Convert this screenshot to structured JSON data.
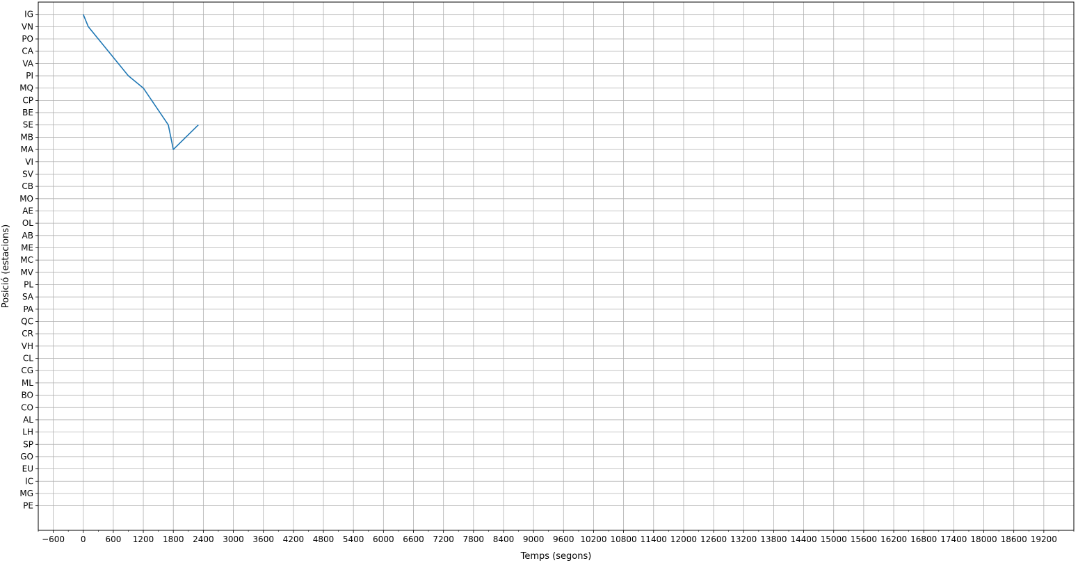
{
  "chart_data": {
    "type": "line",
    "title": "",
    "xlabel": "Temps (segons)",
    "ylabel": "Posició (estacions)",
    "xlim": [
      -900,
      19800
    ],
    "ylim": [
      -2,
      41
    ],
    "grid": true,
    "legend": "none",
    "x_major_ticks": [
      -600,
      0,
      600,
      1200,
      1800,
      2400,
      3000,
      3600,
      4200,
      4800,
      5400,
      6000,
      6600,
      7200,
      7800,
      8400,
      9000,
      9600,
      10200,
      10800,
      11400,
      12000,
      12600,
      13200,
      13800,
      14400,
      15000,
      15600,
      16200,
      16800,
      17400,
      18000,
      18600,
      19200
    ],
    "y_stations": [
      "PE",
      "MG",
      "IC",
      "EU",
      "GO",
      "SP",
      "LH",
      "AL",
      "CO",
      "BO",
      "ML",
      "CG",
      "CL",
      "VH",
      "CR",
      "QC",
      "PA",
      "SA",
      "PL",
      "MV",
      "MC",
      "ME",
      "AB",
      "OL",
      "AE",
      "MO",
      "CB",
      "SV",
      "VI",
      "MA",
      "MB",
      "SE",
      "BE",
      "CP",
      "MQ",
      "PI",
      "VA",
      "CA",
      "PO",
      "VN",
      "IG"
    ],
    "line_groups": [
      {
        "color": "#1f77b4",
        "series": [
          {
            "x": [
              0,
              100,
              300,
              900,
              1200,
              1700,
              1800,
              2300
            ],
            "y": [
              40,
              39,
              38,
              35,
              34,
              31,
              29,
              31
            ]
          }
        ]
      }
    ]
  }
}
